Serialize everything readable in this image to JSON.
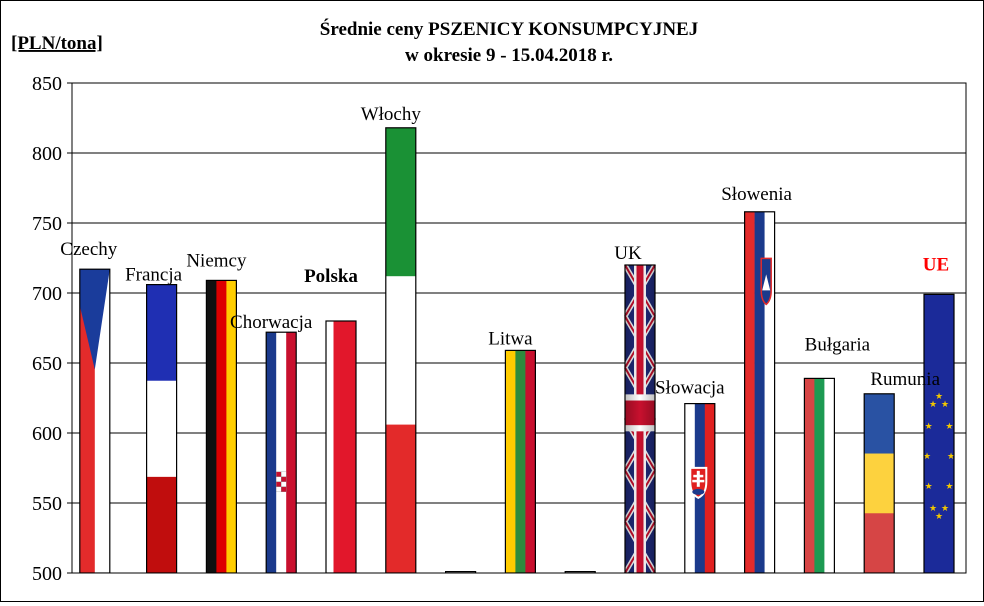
{
  "chart_data": {
    "type": "bar",
    "title": "Średnie ceny PSZENICY  KONSUMPCYJNEJ",
    "subtitle": "w okresie  9 - 15.04.2018 r.",
    "ylabel": "[PLN/tona]",
    "ylim": [
      500,
      850
    ],
    "yticks": [
      "500",
      "550",
      "600",
      "650",
      "700",
      "750",
      "800",
      "850"
    ],
    "grid": true,
    "categories": [
      "Czechy",
      "Francja",
      "Niemcy",
      "Chorwacja",
      "Polska",
      "Włochy",
      "",
      "Litwa",
      "",
      "UK",
      "Słowacja",
      "Słowenia",
      "Bułgaria",
      "Rumunia",
      "UE"
    ],
    "values": [
      717,
      706,
      709,
      672,
      680,
      818,
      501,
      659,
      501,
      720,
      621,
      758,
      639,
      628,
      699
    ],
    "flag_icons": [
      "czech-flag-icon",
      "france-flag-icon",
      "germany-flag-icon",
      "croatia-flag-icon",
      "poland-flag-icon",
      "italy-flag-icon",
      "",
      "lithuania-flag-icon",
      "",
      "uk-flag-icon",
      "slovakia-flag-icon",
      "slovenia-flag-icon",
      "bulgaria-flag-icon",
      "romania-flag-icon",
      "eu-flag-icon"
    ],
    "label_colors": {
      "UE": "#ff0000",
      "default": "#000000"
    }
  }
}
